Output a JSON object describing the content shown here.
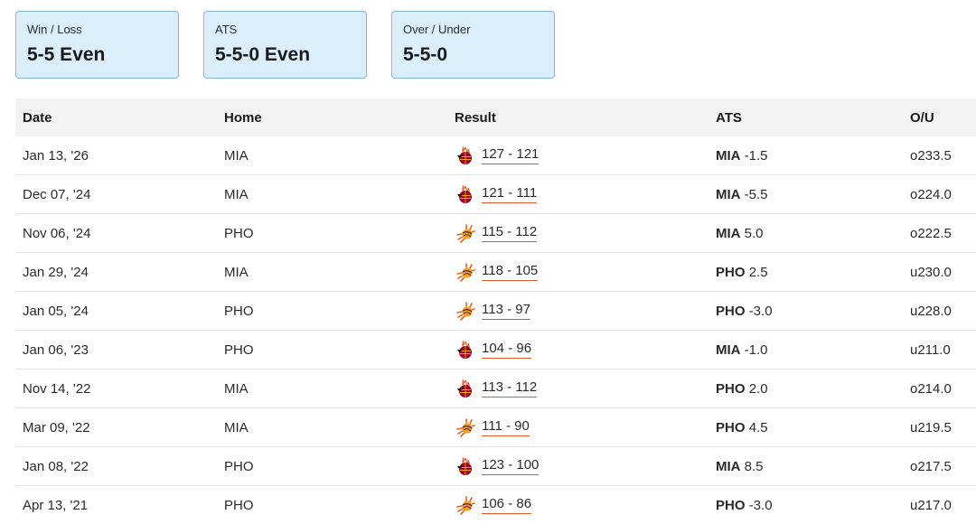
{
  "summary": [
    {
      "label": "Win / Loss",
      "value": "5-5 Even"
    },
    {
      "label": "ATS",
      "value": "5-5-0 Even"
    },
    {
      "label": "Over / Under",
      "value": "5-5-0"
    }
  ],
  "columns": {
    "date": "Date",
    "home": "Home",
    "result": "Result",
    "ats": "ATS",
    "ou": "O/U"
  },
  "rows": [
    {
      "date": "Jan 13, '26",
      "home": "MIA",
      "logo": "heat-logo-icon",
      "score": "127 - 121",
      "ats_team": "MIA",
      "ats_line": "-1.5",
      "ou": "o233.5"
    },
    {
      "date": "Dec 07, '24",
      "home": "MIA",
      "logo": "heat-logo-icon",
      "score": "121 - 111",
      "ats_team": "MIA",
      "ats_line": "-5.5",
      "ou": "o224.0"
    },
    {
      "date": "Nov 06, '24",
      "home": "PHO",
      "logo": "suns-logo-icon",
      "score": "115 - 112",
      "ats_team": "MIA",
      "ats_line": "5.0",
      "ou": "o222.5"
    },
    {
      "date": "Jan 29, '24",
      "home": "MIA",
      "logo": "suns-logo-icon",
      "score": "118 - 105",
      "ats_team": "PHO",
      "ats_line": "2.5",
      "ou": "u230.0"
    },
    {
      "date": "Jan 05, '24",
      "home": "PHO",
      "logo": "suns-logo-icon",
      "score": "113 - 97",
      "ats_team": "PHO",
      "ats_line": "-3.0",
      "ou": "u228.0"
    },
    {
      "date": "Jan 06, '23",
      "home": "PHO",
      "logo": "heat-logo-icon",
      "score": "104 - 96",
      "ats_team": "MIA",
      "ats_line": "-1.0",
      "ou": "u211.0"
    },
    {
      "date": "Nov 14, '22",
      "home": "MIA",
      "logo": "heat-logo-icon",
      "score": "113 - 112",
      "ats_team": "PHO",
      "ats_line": "2.0",
      "ou": "o214.0"
    },
    {
      "date": "Mar 09, '22",
      "home": "MIA",
      "logo": "suns-logo-icon",
      "score": "111 - 90",
      "ats_team": "PHO",
      "ats_line": "4.5",
      "ou": "u219.5"
    },
    {
      "date": "Jan 08, '22",
      "home": "PHO",
      "logo": "heat-logo-icon",
      "score": "123 - 100",
      "ats_team": "MIA",
      "ats_line": "8.5",
      "ou": "o217.5"
    },
    {
      "date": "Apr 13, '21",
      "home": "PHO",
      "logo": "suns-logo-icon",
      "score": "106 - 86",
      "ats_team": "PHO",
      "ats_line": "-3.0",
      "ou": "u217.0"
    }
  ],
  "colors": {
    "card_bg": "#dbeefc",
    "card_border": "#7fb6e3",
    "score_underline": "#e05a2b",
    "heat": "#98002e",
    "suns": "#e56020"
  }
}
